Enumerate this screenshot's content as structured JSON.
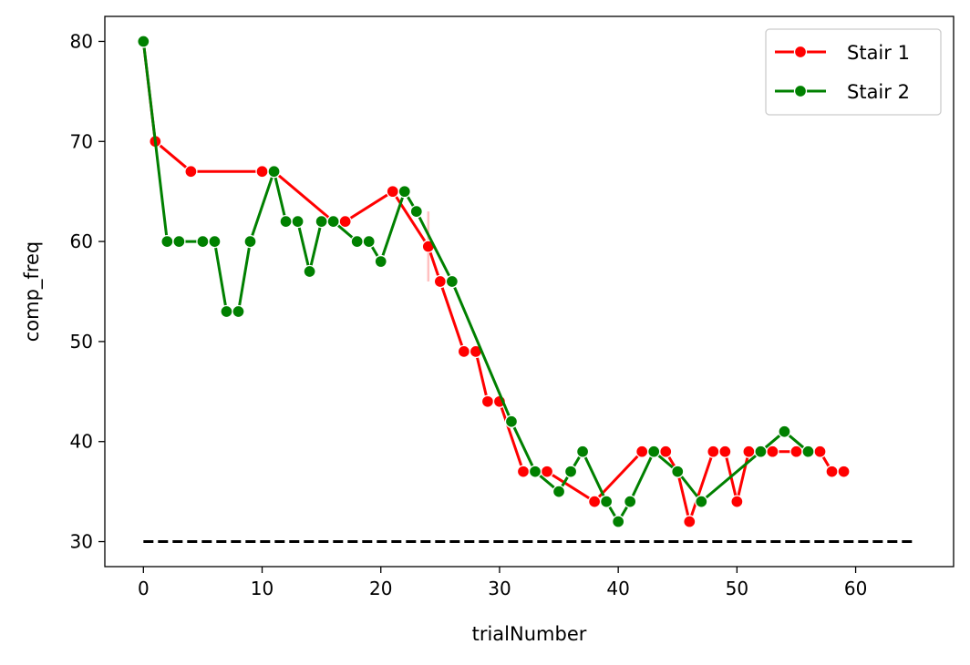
{
  "chart_data": {
    "type": "line",
    "title": "",
    "xlabel": "trialNumber",
    "ylabel": "comp_freq",
    "xlim": [
      -3.25,
      68.25
    ],
    "ylim": [
      27.5,
      82.5
    ],
    "xticks": [
      0,
      10,
      20,
      30,
      40,
      50,
      60
    ],
    "yticks": [
      30,
      40,
      50,
      60,
      70,
      80
    ],
    "grid": false,
    "legend": {
      "position": "top-right",
      "entries": [
        "Stair 1",
        "Stair 2"
      ]
    },
    "series": [
      {
        "name": "Stair 1",
        "color": "#ff0000",
        "marker": "circle",
        "points": [
          [
            0,
            80
          ],
          [
            1,
            70
          ],
          [
            4,
            67
          ],
          [
            10,
            67
          ],
          [
            11,
            67
          ],
          [
            16,
            62
          ],
          [
            17,
            62
          ],
          [
            21,
            65
          ],
          [
            24,
            59.5
          ],
          [
            25,
            56
          ],
          [
            27,
            49
          ],
          [
            28,
            49
          ],
          [
            29,
            44
          ],
          [
            30,
            44
          ],
          [
            32,
            37
          ],
          [
            34,
            37
          ],
          [
            38,
            34
          ],
          [
            42,
            39
          ],
          [
            44,
            39
          ],
          [
            45,
            37
          ],
          [
            46,
            32
          ],
          [
            48,
            39
          ],
          [
            49,
            39
          ],
          [
            50,
            34
          ],
          [
            51,
            39
          ],
          [
            53,
            39
          ],
          [
            55,
            39
          ],
          [
            57,
            39
          ],
          [
            58,
            37
          ],
          [
            59,
            37
          ]
        ]
      },
      {
        "name": "Stair 2",
        "color": "#008000",
        "marker": "circle",
        "points": [
          [
            0,
            80
          ],
          [
            2,
            60
          ],
          [
            3,
            60
          ],
          [
            5,
            60
          ],
          [
            6,
            60
          ],
          [
            7,
            53
          ],
          [
            8,
            53
          ],
          [
            9,
            60
          ],
          [
            11,
            67
          ],
          [
            12,
            62
          ],
          [
            13,
            62
          ],
          [
            14,
            57
          ],
          [
            15,
            62
          ],
          [
            16,
            62
          ],
          [
            18,
            60
          ],
          [
            19,
            60
          ],
          [
            20,
            58
          ],
          [
            22,
            65
          ],
          [
            23,
            63
          ],
          [
            26,
            56
          ],
          [
            31,
            42
          ],
          [
            33,
            37
          ],
          [
            35,
            35
          ],
          [
            36,
            37
          ],
          [
            37,
            39
          ],
          [
            39,
            34
          ],
          [
            40,
            32
          ],
          [
            41,
            34
          ],
          [
            43,
            39
          ],
          [
            45,
            37
          ],
          [
            47,
            34
          ],
          [
            52,
            39
          ],
          [
            54,
            41
          ],
          [
            56,
            39
          ]
        ]
      }
    ],
    "reference_line": {
      "y": 30,
      "x_range": [
        0,
        65
      ],
      "style": "dashed",
      "color": "#000000"
    },
    "error_bar": {
      "x": 24,
      "y_range": [
        56,
        63
      ],
      "color": "#ffc0c0"
    }
  }
}
